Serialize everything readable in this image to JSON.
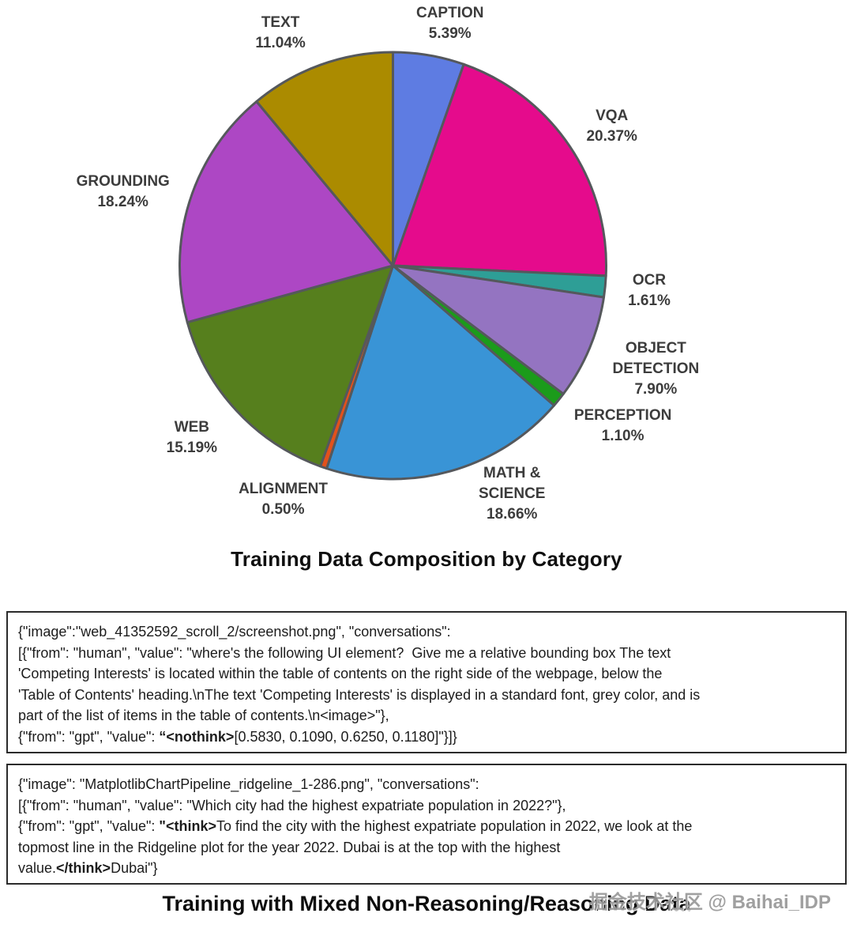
{
  "chart_data": {
    "type": "pie",
    "title": "Training Data Composition by Category",
    "start_angle_deg": 90,
    "direction": "clockwise",
    "labels_position": "outside",
    "legend": "none",
    "stroke_color": "#55585c",
    "stroke_width": 3,
    "slices": [
      {
        "label": "CAPTION",
        "label_lines": [
          "CAPTION"
        ],
        "value": 5.39,
        "pct_text": "5.39%",
        "color": "#5e7ce2"
      },
      {
        "label": "VQA",
        "label_lines": [
          "VQA"
        ],
        "value": 20.37,
        "pct_text": "20.37%",
        "color": "#e50b8c"
      },
      {
        "label": "OCR",
        "label_lines": [
          "OCR"
        ],
        "value": 1.61,
        "pct_text": "1.61%",
        "color": "#2e9e96"
      },
      {
        "label": "OBJECT DETECTION",
        "label_lines": [
          "OBJECT",
          "DETECTION"
        ],
        "value": 7.9,
        "pct_text": "7.90%",
        "color": "#9474c1"
      },
      {
        "label": "PERCEPTION",
        "label_lines": [
          "PERCEPTION"
        ],
        "value": 1.1,
        "pct_text": "1.10%",
        "color": "#1b9b1b"
      },
      {
        "label": "MATH & SCIENCE",
        "label_lines": [
          "MATH &",
          "SCIENCE"
        ],
        "value": 18.66,
        "pct_text": "18.66%",
        "color": "#3994d6"
      },
      {
        "label": "ALIGNMENT",
        "label_lines": [
          "ALIGNMENT"
        ],
        "value": 0.5,
        "pct_text": "0.50%",
        "color": "#e2511c"
      },
      {
        "label": "WEB",
        "label_lines": [
          "WEB"
        ],
        "value": 15.19,
        "pct_text": "15.19%",
        "color": "#567f1d"
      },
      {
        "label": "GROUNDING",
        "label_lines": [
          "GROUNDING"
        ],
        "value": 18.24,
        "pct_text": "18.24%",
        "color": "#ad47c4"
      },
      {
        "label": "TEXT",
        "label_lines": [
          "TEXT"
        ],
        "value": 11.04,
        "pct_text": "11.04%",
        "color": "#ab8b00"
      }
    ]
  },
  "code_boxes": [
    {
      "lines": [
        [
          {
            "t": "{\"image\":\"web_41352592_scroll_2/screenshot.png\", \"conversations\":",
            "b": false
          }
        ],
        [
          {
            "t": "[{\"from\": \"human\", \"value\": \"where's the following UI element?  Give me a relative bounding box The text",
            "b": false
          }
        ],
        [
          {
            "t": "'Competing Interests' is located within the table of contents on the right side of the webpage, below the",
            "b": false
          }
        ],
        [
          {
            "t": "'Table of Contents' heading.\\nThe text 'Competing Interests' is displayed in a standard font, grey color, and is",
            "b": false
          }
        ],
        [
          {
            "t": "part of the list of items in the table of contents.\\n<image>\"},",
            "b": false
          }
        ],
        [
          {
            "t": "{\"from\": \"gpt\", \"value\": ",
            "b": false
          },
          {
            "t": "“<nothink>",
            "b": true
          },
          {
            "t": "[0.5830, 0.1090, 0.6250, 0.1180]\"}]}",
            "b": false
          }
        ]
      ]
    },
    {
      "lines": [
        [
          {
            "t": "{\"image\": \"MatplotlibChartPipeline_ridgeline_1-286.png\", \"conversations\":",
            "b": false
          }
        ],
        [
          {
            "t": "[{\"from\": \"human\", \"value\": \"Which city had the highest expatriate population in 2022?\"},",
            "b": false
          }
        ],
        [
          {
            "t": "{\"from\": \"gpt\", \"value\": ",
            "b": false
          },
          {
            "t": "\"<think>",
            "b": true
          },
          {
            "t": "To find the city with the highest expatriate population in 2022, we look at the",
            "b": false
          }
        ],
        [
          {
            "t": "topmost line in the Ridgeline plot for the year 2022. Dubai is at the top with the highest",
            "b": false
          }
        ],
        [
          {
            "t": "value.",
            "b": false
          },
          {
            "t": "</think>",
            "b": true
          },
          {
            "t": "Dubai\"}",
            "b": false
          }
        ]
      ]
    }
  ],
  "bottom_title": "Training with Mixed Non-Reasoning/Reasoning Data",
  "watermark": "掘金技术社区 @ Baihai_IDP"
}
